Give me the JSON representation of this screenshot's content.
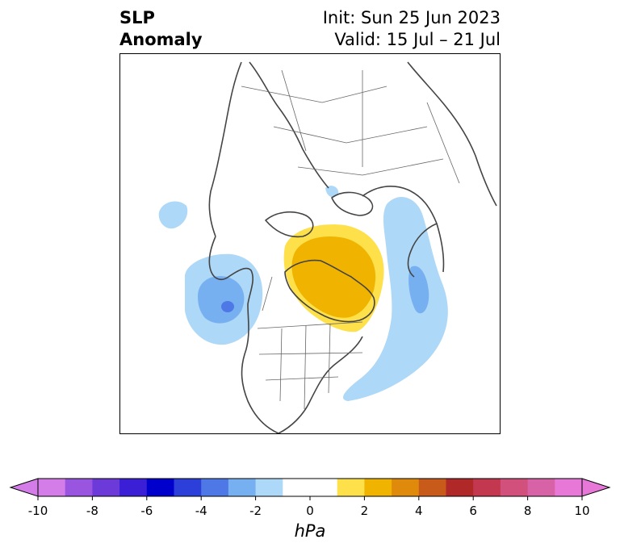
{
  "title": {
    "left_line1": "SLP",
    "left_line2": "Anomaly",
    "right_line1": "Init: Sun 25 Jun 2023",
    "right_line2": "Valid: 15 Jul – 21 Jul"
  },
  "colorbar": {
    "unit": "hPa",
    "min": -10,
    "max": 10,
    "step": 1,
    "extend": "both",
    "tick_values": [
      -10,
      -8,
      -6,
      -4,
      -2,
      0,
      2,
      4,
      6,
      8,
      10
    ],
    "tick_labels": [
      "-10",
      "-8",
      "-6",
      "-4",
      "-2",
      "0",
      "2",
      "4",
      "6",
      "8",
      "10"
    ],
    "colors": [
      "#d47de9",
      "#9a55e0",
      "#6c3ad9",
      "#3a1fd6",
      "#0000cc",
      "#2c3fd8",
      "#4d78e6",
      "#77b0f1",
      "#aed8f7",
      "#ffffff",
      "#ffffff",
      "#fde04a",
      "#f0b400",
      "#e08a0c",
      "#c85a1a",
      "#b02828",
      "#c4384f",
      "#d2507c",
      "#d862a6",
      "#e878d8"
    ]
  },
  "anomalies": {
    "negative_light": "#aed8f7",
    "negative_mid": "#77b0f1",
    "negative_strong": "#4d78e6",
    "positive_light": "#fde04a",
    "positive_mid": "#f0b400"
  }
}
